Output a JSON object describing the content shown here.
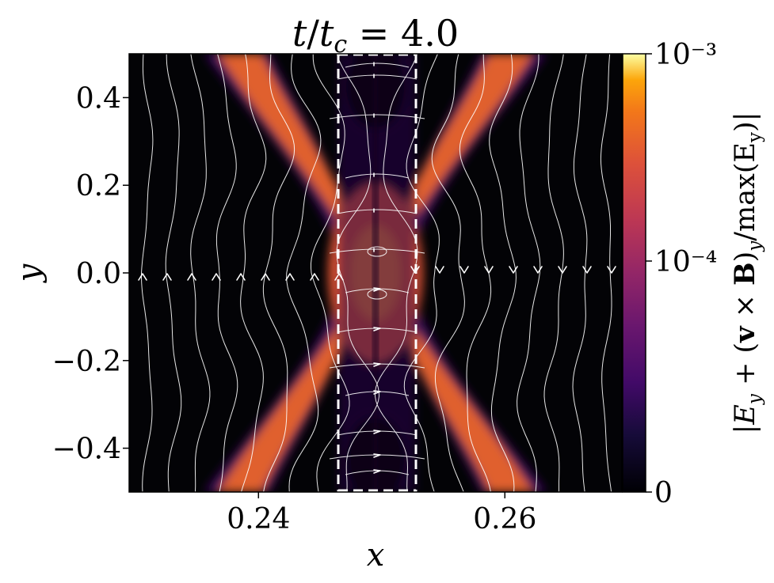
{
  "chart_data": {
    "type": "heatmap",
    "title": "t/t_c = 4.0",
    "xlabel": "x",
    "ylabel": "y",
    "xlim": [
      0.2295,
      0.2695
    ],
    "ylim": [
      -0.5,
      0.5
    ],
    "xticks": [
      0.24,
      0.26
    ],
    "xtick_labels": [
      "0.24",
      "0.26"
    ],
    "yticks": [
      0.4,
      0.2,
      0.0,
      -0.2,
      -0.4
    ],
    "ytick_labels": [
      "0.4",
      "0.2",
      "0.0",
      "−0.2",
      "−0.4"
    ],
    "colorbar": {
      "label": "|E_y + (v × B)_y / max(E_y)|",
      "scale": "symlog",
      "ticks": [
        0,
        0.0001,
        0.001
      ],
      "tick_labels": [
        "0",
        "10⁻⁴",
        "10⁻³"
      ],
      "colormap": "inferno"
    },
    "dashed_box": {
      "x": [
        0.2468,
        0.2532
      ],
      "y": [
        -0.5,
        0.5
      ],
      "color": "#ffffff"
    },
    "streamlines": {
      "color": "#ffffff",
      "description": "magnetic field lines with arrows"
    },
    "grid": false
  }
}
